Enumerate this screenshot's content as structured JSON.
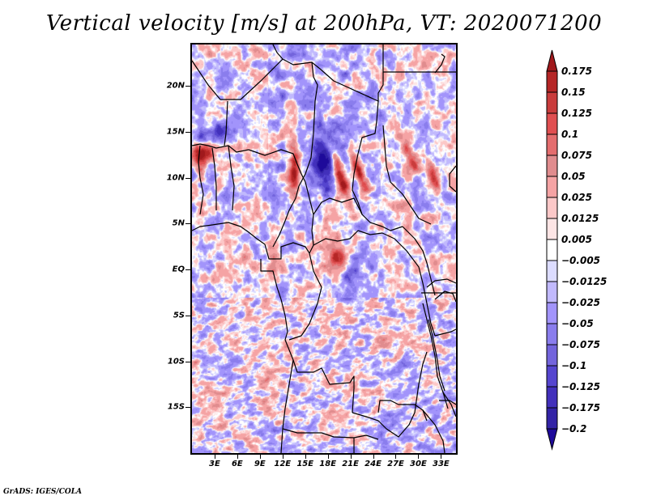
{
  "title": "Vertical velocity [m/s] at 200hPa, VT: 2020071200",
  "credit": "GrADS: IGES/COLA",
  "map": {
    "variable": "Vertical velocity",
    "units": "m/s",
    "level": "200hPa",
    "valid_time": "2020071200",
    "lon_range": [
      0,
      35
    ],
    "lat_range": [
      -20,
      24.5
    ],
    "lat_ticks": [
      {
        "value": 20,
        "label": "20N"
      },
      {
        "value": 15,
        "label": "15N"
      },
      {
        "value": 10,
        "label": "10N"
      },
      {
        "value": 5,
        "label": "5N"
      },
      {
        "value": 0,
        "label": "EQ"
      },
      {
        "value": -5,
        "label": "5S"
      },
      {
        "value": -10,
        "label": "10S"
      },
      {
        "value": -15,
        "label": "15S"
      }
    ],
    "lon_ticks": [
      {
        "value": 3,
        "label": "3E"
      },
      {
        "value": 6,
        "label": "6E"
      },
      {
        "value": 9,
        "label": "9E"
      },
      {
        "value": 12,
        "label": "12E"
      },
      {
        "value": 15,
        "label": "15E"
      },
      {
        "value": 18,
        "label": "18E"
      },
      {
        "value": 21,
        "label": "21E"
      },
      {
        "value": 24,
        "label": "24E"
      },
      {
        "value": 27,
        "label": "27E"
      },
      {
        "value": 30,
        "label": "30E"
      },
      {
        "value": 33,
        "label": "33E"
      }
    ]
  },
  "colorbar": {
    "labels": [
      "0.175",
      "0.15",
      "0.125",
      "0.1",
      "0.075",
      "0.05",
      "0.025",
      "0.0125",
      "0.005",
      "−0.005",
      "−0.0125",
      "−0.025",
      "−0.05",
      "−0.075",
      "−0.1",
      "−0.125",
      "−0.175",
      "−0.2"
    ],
    "levels": [
      0.175,
      0.15,
      0.125,
      0.1,
      0.075,
      0.05,
      0.025,
      0.0125,
      0.005,
      -0.005,
      -0.0125,
      -0.025,
      -0.05,
      -0.075,
      -0.1,
      -0.125,
      -0.175,
      -0.2
    ],
    "colors_top_to_bottom": [
      "#a0191c",
      "#b52626",
      "#c93c3c",
      "#e04f51",
      "#e46d6e",
      "#e08c8e",
      "#f5a3a4",
      "#fcc8c8",
      "#fde5e5",
      "#ffffff",
      "#dcdcff",
      "#c1b9fd",
      "#a294fb",
      "#8a7ded",
      "#7364dc",
      "#5545cf",
      "#4230bb",
      "#3323a6",
      "#1e0a9a"
    ],
    "over_color": "#a0191c",
    "under_color": "#1e0a9a"
  }
}
